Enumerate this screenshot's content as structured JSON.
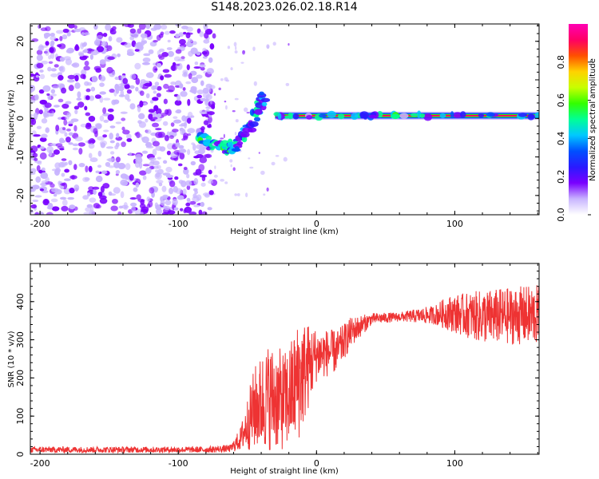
{
  "title": "S148.2023.026.02.18.R14",
  "chart_data": [
    {
      "type": "heatmap",
      "title": "S148.2023.026.02.18.R14",
      "xlabel": "Height of straight line (km)",
      "ylabel": "Frequency (Hz)",
      "xlim": [
        -207,
        161
      ],
      "ylim": [
        -25,
        24.5
      ],
      "xticks": [
        -200,
        -100,
        0,
        100
      ],
      "yticks": [
        -20,
        -10,
        0,
        10,
        20
      ],
      "colorbar": {
        "label": "Normalized spectral amplitude",
        "range": [
          0,
          1
        ],
        "ticks": [
          "0.0",
          "0.2",
          "0.4",
          "0.6",
          "0.8"
        ],
        "colormap": [
          "#ffffff",
          "#c8b4ff",
          "#7a00ff",
          "#2a1aff",
          "#0050ff",
          "#00c8ff",
          "#00ff96",
          "#32ff00",
          "#c8ff00",
          "#ffd200",
          "#ff5000",
          "#ff0064",
          "#ff00b4"
        ]
      },
      "features": [
        {
          "name": "noise region",
          "x_range": [
            -207,
            -80
          ],
          "freq_range": [
            -25,
            24.5
          ],
          "amplitude": "low"
        },
        {
          "name": "descending trace",
          "points": [
            [
              -85,
              -5
            ],
            [
              -75,
              -7
            ],
            [
              -65,
              -8
            ],
            [
              -58,
              -7
            ],
            [
              -50,
              -3
            ],
            [
              -42,
              2
            ],
            [
              -38,
              6
            ]
          ],
          "amplitude": "medium"
        },
        {
          "name": "tone at ~0.7 Hz",
          "x_range": [
            -30,
            161
          ],
          "freq": 0.7,
          "amplitude": "high"
        }
      ]
    },
    {
      "type": "line",
      "xlabel": "Height of straight line (km)",
      "ylabel": "SNR (10 * v/v)",
      "xlim": [
        -207,
        161
      ],
      "ylim": [
        0,
        500
      ],
      "xticks": [
        -200,
        -100,
        0,
        100
      ],
      "yticks": [
        0,
        100,
        200,
        300,
        400
      ],
      "color": "#ee3333",
      "profile": [
        {
          "x": -207,
          "y": 12,
          "spread": 8
        },
        {
          "x": -80,
          "y": 12,
          "spread": 8
        },
        {
          "x": -62,
          "y": 15,
          "spread": 10
        },
        {
          "x": -55,
          "y": 40,
          "spread": 30
        },
        {
          "x": -45,
          "y": 120,
          "spread": 110
        },
        {
          "x": -35,
          "y": 150,
          "spread": 140
        },
        {
          "x": -22,
          "y": 140,
          "spread": 130
        },
        {
          "x": -12,
          "y": 200,
          "spread": 160
        },
        {
          "x": 0,
          "y": 260,
          "spread": 70
        },
        {
          "x": 15,
          "y": 270,
          "spread": 55
        },
        {
          "x": 25,
          "y": 320,
          "spread": 40
        },
        {
          "x": 40,
          "y": 355,
          "spread": 15
        },
        {
          "x": 60,
          "y": 360,
          "spread": 12
        },
        {
          "x": 85,
          "y": 365,
          "spread": 25
        },
        {
          "x": 95,
          "y": 370,
          "spread": 45
        },
        {
          "x": 120,
          "y": 360,
          "spread": 70
        },
        {
          "x": 161,
          "y": 365,
          "spread": 80
        }
      ]
    }
  ]
}
